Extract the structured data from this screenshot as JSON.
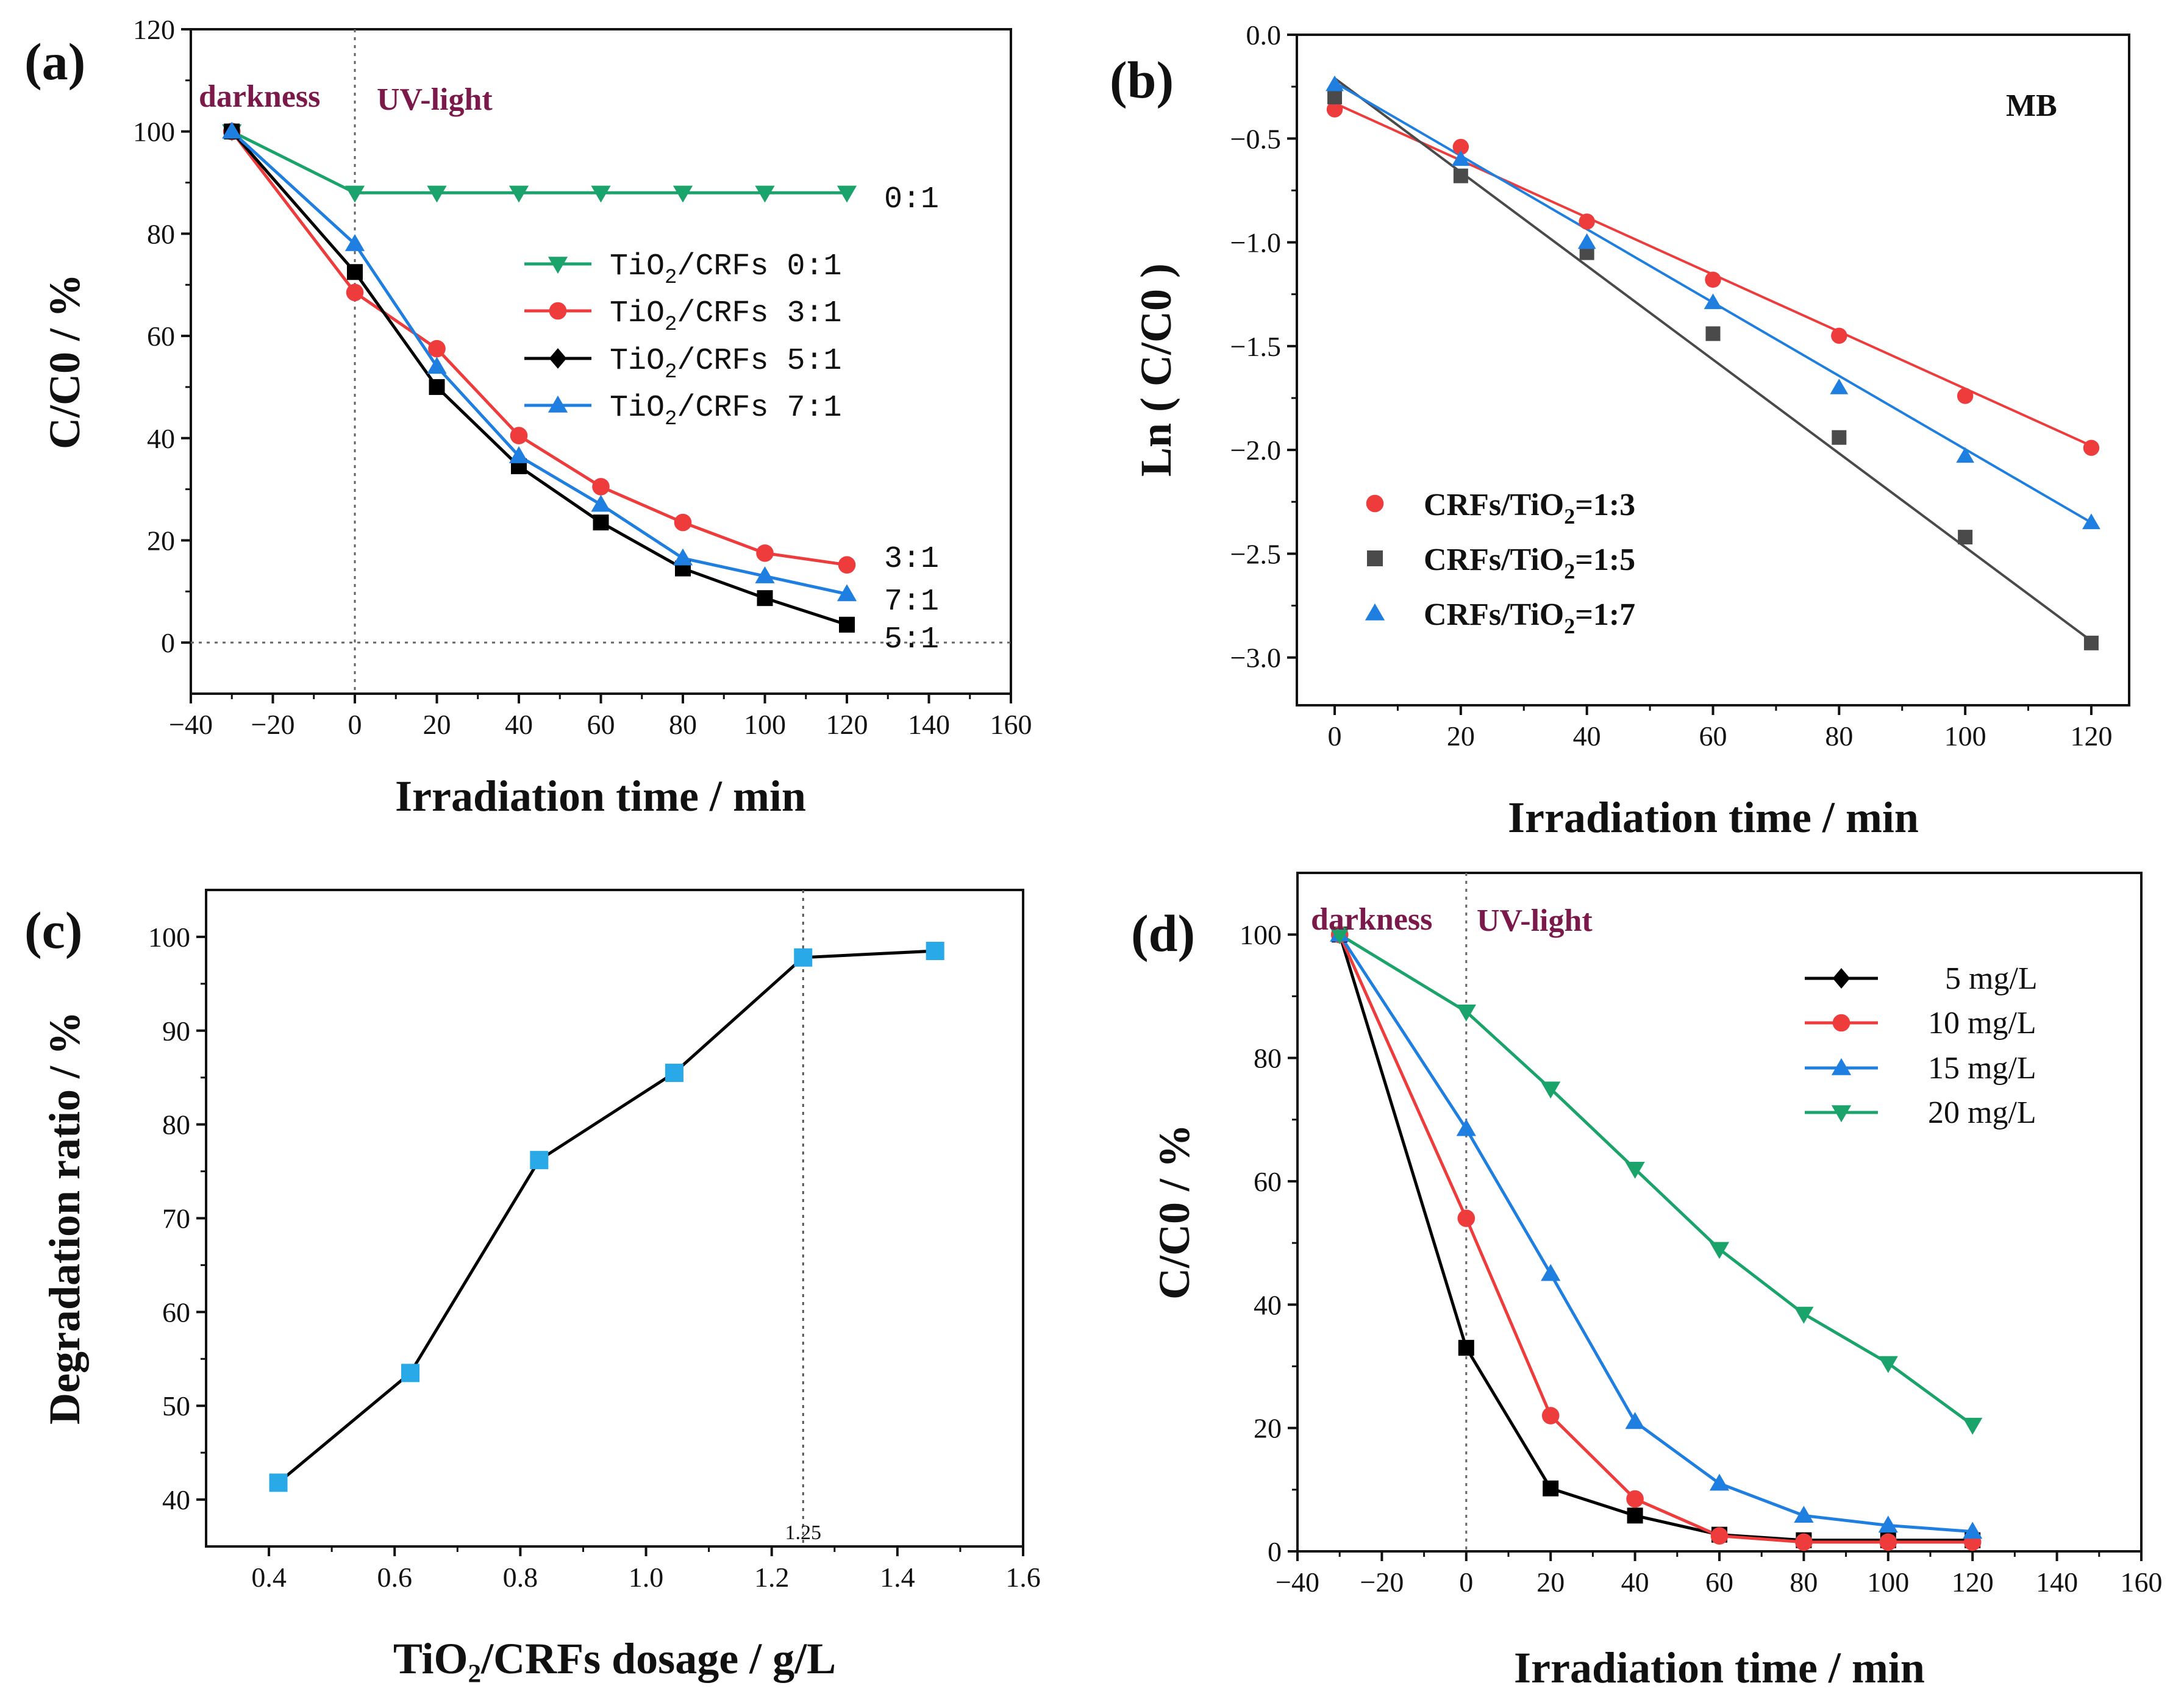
{
  "chart_data": [
    {
      "panel": "(a)",
      "type": "line",
      "xlabel": "Irradiation time /  min",
      "ylabel": "C/C0  / %",
      "xlim": [
        -40,
        160
      ],
      "ylim": [
        -10,
        120
      ],
      "xticks": [
        -40,
        -20,
        0,
        20,
        40,
        60,
        80,
        100,
        120,
        140,
        160
      ],
      "yticks": [
        0,
        20,
        40,
        60,
        80,
        100,
        120
      ],
      "xtick_labels": [
        "−40",
        "−20",
        "0",
        "20",
        "40",
        "60",
        "80",
        "100",
        "120",
        "140",
        "160"
      ],
      "ytick_labels": [
        "0",
        "20",
        "40",
        "60",
        "80",
        "100",
        "120"
      ],
      "region_labels": [
        "darkness",
        "UV-light"
      ],
      "legend_prefix": "TiO",
      "legend_subscript": "2",
      "series": [
        {
          "name": "0:1",
          "label": "/CRFs 0:1",
          "color": "#1aa36a",
          "marker": "triangle-down",
          "x": [
            -30,
            0,
            20,
            40,
            60,
            80,
            100,
            120
          ],
          "y": [
            100,
            88,
            88,
            88,
            88,
            88,
            88,
            88
          ],
          "end_label": "0:1"
        },
        {
          "name": "3:1",
          "label": "/CRFs 3:1",
          "color": "#ee3b3b",
          "marker": "circle",
          "x": [
            -30,
            0,
            20,
            40,
            60,
            80,
            100,
            120
          ],
          "y": [
            100,
            68.5,
            57.5,
            40.5,
            30.5,
            23.5,
            17.5,
            15.2
          ],
          "end_label": "3:1"
        },
        {
          "name": "5:1",
          "label": "/CRFs 5:1",
          "color": "#000000",
          "marker": "square",
          "legend_marker": "diamond",
          "x": [
            -30,
            0,
            20,
            40,
            60,
            80,
            100,
            120
          ],
          "y": [
            100,
            72.5,
            50,
            34.5,
            23.5,
            14.5,
            8.7,
            3.5
          ],
          "end_label": "5:1"
        },
        {
          "name": "7:1",
          "label": "/CRFs 7:1",
          "color": "#1f7fe0",
          "marker": "triangle-up",
          "x": [
            -30,
            0,
            20,
            40,
            60,
            80,
            100,
            120
          ],
          "y": [
            100,
            78,
            54,
            36.5,
            27,
            16.5,
            13,
            9.5
          ],
          "end_label": "7:1"
        }
      ]
    },
    {
      "panel": "(b)",
      "type": "scatter",
      "annotation": "MB",
      "xlabel": "Irradiation time /  min",
      "ylabel": "Ln ( C/C0 )",
      "xlim": [
        -6,
        126
      ],
      "ylim": [
        -3.23,
        0
      ],
      "xticks": [
        0,
        20,
        40,
        60,
        80,
        100,
        120
      ],
      "yticks": [
        0,
        -0.5,
        -1.0,
        -1.5,
        -2.0,
        -2.5,
        -3.0
      ],
      "xtick_labels": [
        "0",
        "20",
        "40",
        "60",
        "80",
        "100",
        "120"
      ],
      "ytick_labels": [
        "0.0",
        "−0.5",
        "−1.0",
        "−1.5",
        "−2.0",
        "−2.5",
        "−3.0"
      ],
      "legend_prefix": "CRFs/TiO",
      "legend_subscript": "2",
      "series": [
        {
          "name": "1:3",
          "label": "=1:3",
          "color": "#ee3b3b",
          "fit_color": "#ee3b3b",
          "marker": "circle",
          "x": [
            0,
            20,
            40,
            60,
            80,
            100,
            120
          ],
          "y": [
            -0.36,
            -0.54,
            -0.9,
            -1.18,
            -1.45,
            -1.74,
            -1.99
          ],
          "fit": {
            "x0": 0,
            "y0": -0.33,
            "x1": 120,
            "y1": -1.98
          }
        },
        {
          "name": "1:5",
          "label": "=1:5",
          "color": "#4a4a4a",
          "fit_color": "#4a4a4a",
          "marker": "square",
          "x": [
            0,
            20,
            40,
            60,
            80,
            100,
            120
          ],
          "y": [
            -0.3,
            -0.68,
            -1.05,
            -1.44,
            -1.94,
            -2.42,
            -2.93
          ],
          "fit": {
            "x0": 0,
            "y0": -0.21,
            "x1": 120,
            "y1": -2.92
          }
        },
        {
          "name": "1:7",
          "label": "=1:7",
          "color": "#1f7fe0",
          "fit_color": "#1f7fe0",
          "marker": "triangle-up",
          "x": [
            0,
            20,
            40,
            60,
            80,
            100,
            120
          ],
          "y": [
            -0.24,
            -0.6,
            -1.0,
            -1.29,
            -1.7,
            -2.03,
            -2.35
          ],
          "fit": {
            "x0": 0,
            "y0": -0.23,
            "x1": 120,
            "y1": -2.35
          }
        }
      ]
    },
    {
      "panel": "(c)",
      "type": "line",
      "xlabel": "TiO₂/CRFs dosage / g/L",
      "ylabel": "Degradation ratio / %",
      "xlim": [
        0.3,
        1.6
      ],
      "ylim": [
        35,
        105
      ],
      "xticks": [
        0.4,
        0.6,
        0.8,
        1.0,
        1.2,
        1.4,
        1.6
      ],
      "yticks": [
        40,
        50,
        60,
        70,
        80,
        90,
        100
      ],
      "xtick_labels": [
        "0.4",
        "0.6",
        "0.8",
        "1.0",
        "1.2",
        "1.4",
        "1.6"
      ],
      "ytick_labels": [
        "40",
        "50",
        "60",
        "70",
        "80",
        "90",
        "100"
      ],
      "vline": {
        "x": 1.25,
        "label": "1.25"
      },
      "series": [
        {
          "name": "degradation",
          "color": "#000000",
          "marker_color": "#29a9e8",
          "marker": "square",
          "x": [
            0.415,
            0.625,
            0.83,
            1.045,
            1.25,
            1.46
          ],
          "y": [
            41.8,
            53.5,
            76.2,
            85.5,
            97.8,
            98.5
          ]
        }
      ]
    },
    {
      "panel": "(d)",
      "type": "line",
      "xlabel": "Irradiation time /  min",
      "ylabel": "C/C0  / %",
      "xlim": [
        -40,
        160
      ],
      "ylim": [
        0,
        110
      ],
      "xticks": [
        -40,
        -20,
        0,
        20,
        40,
        60,
        80,
        100,
        120,
        140,
        160
      ],
      "yticks": [
        0,
        20,
        40,
        60,
        80,
        100
      ],
      "xtick_labels": [
        "−40",
        "−20",
        "0",
        "20",
        "40",
        "60",
        "80",
        "100",
        "120",
        "140",
        "160"
      ],
      "ytick_labels": [
        "0",
        "20",
        "40",
        "60",
        "80",
        "100"
      ],
      "region_labels": [
        "darkness",
        "UV-light"
      ],
      "series": [
        {
          "name": "5mg/L",
          "label": "5 mg/L",
          "color": "#000000",
          "marker": "square",
          "legend_marker": "diamond",
          "x": [
            -30,
            0,
            20,
            40,
            60,
            80,
            100,
            120
          ],
          "y": [
            100,
            33,
            10.2,
            5.8,
            2.7,
            1.8,
            1.8,
            1.8
          ]
        },
        {
          "name": "10mg/L",
          "label": "10 mg/L",
          "color": "#ee3b3b",
          "marker": "circle",
          "x": [
            -30,
            0,
            20,
            40,
            60,
            80,
            100,
            120
          ],
          "y": [
            100,
            54,
            22,
            8.5,
            2.5,
            1.5,
            1.5,
            1.5
          ]
        },
        {
          "name": "15mg/L",
          "label": "15 mg/L",
          "color": "#1f7fe0",
          "marker": "triangle-up",
          "x": [
            -30,
            0,
            20,
            40,
            60,
            80,
            100,
            120
          ],
          "y": [
            100,
            68.5,
            45,
            21,
            11,
            5.8,
            4.2,
            3.2
          ]
        },
        {
          "name": "20mg/L",
          "label": "20 mg/L",
          "color": "#1aa36a",
          "marker": "triangle-down",
          "x": [
            -30,
            0,
            20,
            40,
            60,
            80,
            100,
            120
          ],
          "y": [
            100,
            87.5,
            75,
            62,
            49,
            38.5,
            30.5,
            20.5
          ]
        }
      ]
    }
  ]
}
